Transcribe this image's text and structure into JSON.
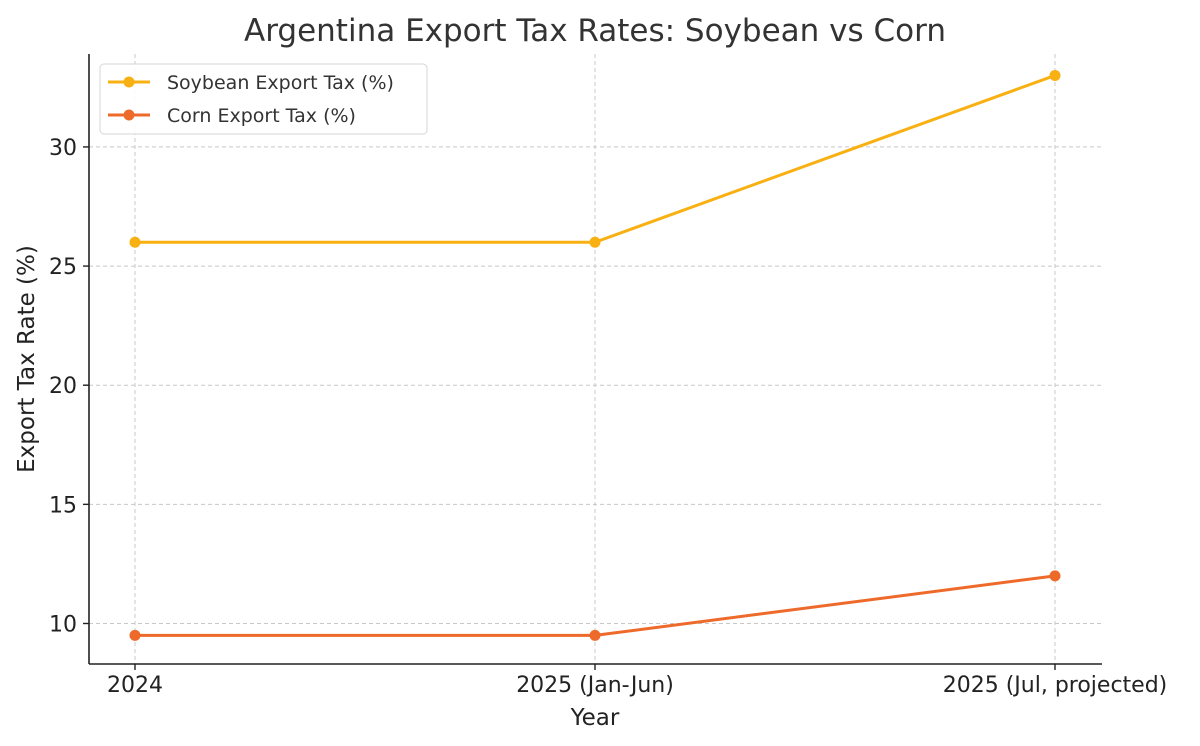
{
  "chart_data": {
    "type": "line",
    "title": "Argentina Export Tax Rates: Soybean vs Corn",
    "xlabel": "Year",
    "ylabel": "Export Tax Rate (%)",
    "categories": [
      "2024",
      "2025 (Jan-Jun)",
      "2025 (Jul, projected)"
    ],
    "yticks": [
      10,
      15,
      20,
      25,
      30
    ],
    "ylim": [
      8.3,
      33.9
    ],
    "grid": true,
    "legend_position": "top-left",
    "series": [
      {
        "name": "Soybean Export Tax (%)",
        "color": "#F8B012",
        "values": [
          26,
          26,
          33
        ]
      },
      {
        "name": "Corn Export Tax (%)",
        "color": "#EE6A2A",
        "values": [
          9.5,
          9.5,
          12
        ]
      }
    ]
  }
}
